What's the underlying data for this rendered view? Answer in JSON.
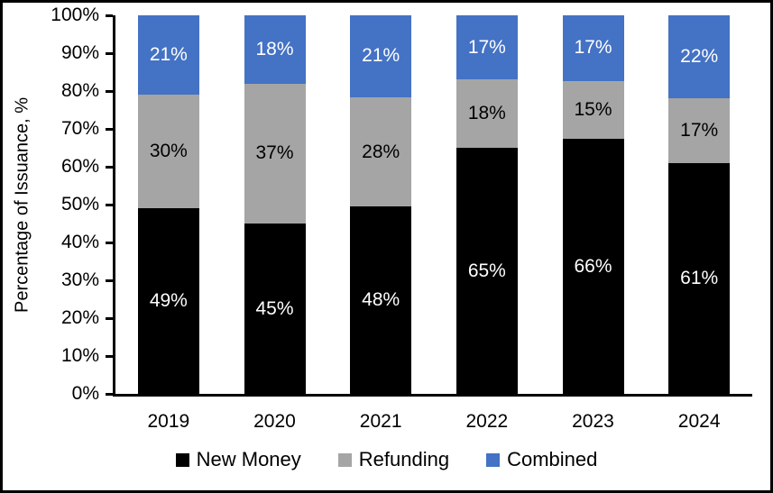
{
  "chart_data": {
    "type": "bar",
    "stacked": true,
    "percent_stacked": true,
    "title": "",
    "xlabel": "",
    "ylabel": "Percentage of Issuance, %",
    "categories": [
      "2019",
      "2020",
      "2021",
      "2022",
      "2023",
      "2024"
    ],
    "series": [
      {
        "name": "New Money",
        "color": "#000000",
        "label_color": "#ffffff",
        "values": [
          49,
          45,
          48,
          65,
          66,
          61
        ]
      },
      {
        "name": "Refunding",
        "color": "#A5A5A5",
        "label_color": "#000000",
        "values": [
          30,
          37,
          28,
          18,
          15,
          17
        ]
      },
      {
        "name": "Combined",
        "color": "#4472C4",
        "label_color": "#ffffff",
        "values": [
          21,
          18,
          21,
          17,
          17,
          22
        ]
      }
    ],
    "value_suffix": "%",
    "ylim": [
      0,
      100
    ],
    "y_ticks": [
      "100%",
      "90%",
      "80%",
      "70%",
      "60%",
      "50%",
      "40%",
      "30%",
      "20%",
      "10%",
      "0%"
    ],
    "grid": false,
    "legend_position": "bottom",
    "axis_color": "#000000"
  }
}
